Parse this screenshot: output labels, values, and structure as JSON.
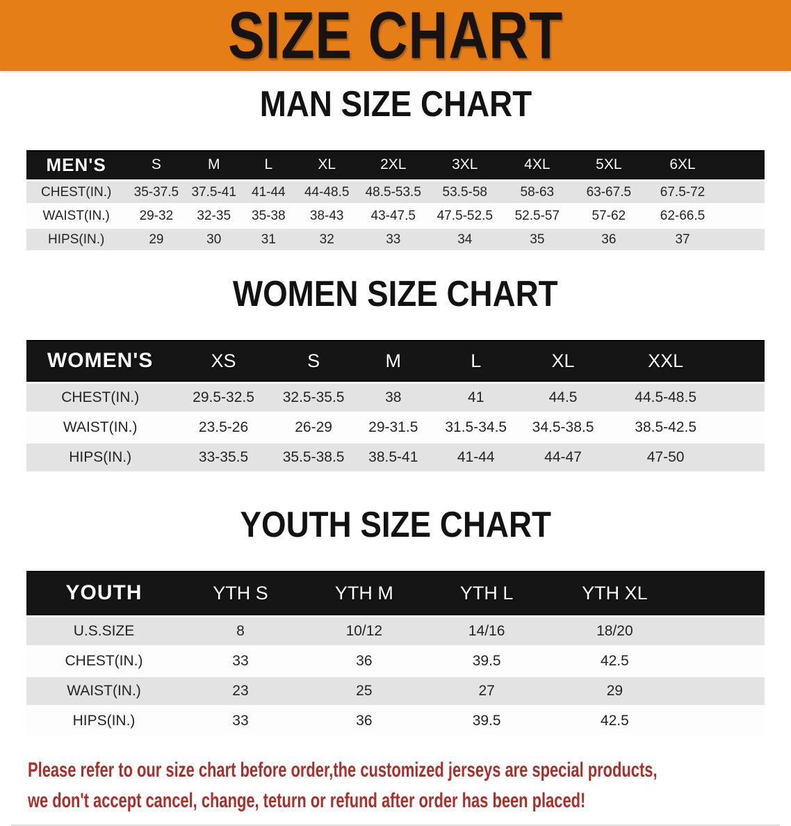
{
  "banner": {
    "title": "SIZE CHART",
    "background_color": "#E67E17",
    "title_color": "#171310"
  },
  "sections": {
    "men": {
      "heading": "MAN SIZE CHART",
      "table": {
        "corner_label": "MEN'S",
        "columns": [
          "S",
          "M",
          "L",
          "XL",
          "2XL",
          "3XL",
          "4XL",
          "5XL",
          "6XL"
        ],
        "rows": [
          {
            "label": "CHEST(IN.)",
            "values": [
              "35-37.5",
              "37.5-41",
              "41-44",
              "44-48.5",
              "48.5-53.5",
              "53.5-58",
              "58-63",
              "63-67.5",
              "67.5-72"
            ]
          },
          {
            "label": "WAIST(IN.)",
            "values": [
              "29-32",
              "32-35",
              "35-38",
              "38-43",
              "43-47.5",
              "47.5-52.5",
              "52.5-57",
              "57-62",
              "62-66.5"
            ]
          },
          {
            "label": "HIPS(IN.)",
            "values": [
              "29",
              "30",
              "31",
              "32",
              "33",
              "34",
              "35",
              "36",
              "37"
            ]
          }
        ]
      }
    },
    "women": {
      "heading": "WOMEN SIZE CHART",
      "table": {
        "corner_label": "WOMEN'S",
        "columns": [
          "XS",
          "S",
          "M",
          "L",
          "XL",
          "XXL"
        ],
        "rows": [
          {
            "label": "CHEST(IN.)",
            "values": [
              "29.5-32.5",
              "32.5-35.5",
              "38",
              "41",
              "44.5",
              "44.5-48.5"
            ]
          },
          {
            "label": "WAIST(IN.)",
            "values": [
              "23.5-26",
              "26-29",
              "29-31.5",
              "31.5-34.5",
              "34.5-38.5",
              "38.5-42.5"
            ]
          },
          {
            "label": "HIPS(IN.)",
            "values": [
              "33-35.5",
              "35.5-38.5",
              "38.5-41",
              "41-44",
              "44-47",
              "47-50"
            ]
          }
        ]
      }
    },
    "youth": {
      "heading": "YOUTH SIZE CHART",
      "table": {
        "corner_label": "YOUTH",
        "columns": [
          "YTH S",
          "YTH M",
          "YTH L",
          "YTH XL"
        ],
        "rows": [
          {
            "label": "U.S.SIZE",
            "values": [
              "8",
              "10/12",
              "14/16",
              "18/20"
            ]
          },
          {
            "label": "CHEST(IN.)",
            "values": [
              "33",
              "36",
              "39.5",
              "42.5"
            ]
          },
          {
            "label": "WAIST(IN.)",
            "values": [
              "23",
              "25",
              "27",
              "29"
            ]
          },
          {
            "label": "HIPS(IN.)",
            "values": [
              "33",
              "36",
              "39.5",
              "42.5"
            ]
          }
        ]
      }
    }
  },
  "footer": {
    "line1": "Please refer to our size chart before order,the customized jerseys are special products,",
    "line2": "we don't accept cancel, change, teturn or refund after order has been placed!",
    "text_color": "#AB2F28"
  },
  "colors": {
    "table_header_bg": "#151515",
    "row_stripe_gray": "#E3E3E3",
    "row_stripe_white": "#FDFDFD"
  }
}
